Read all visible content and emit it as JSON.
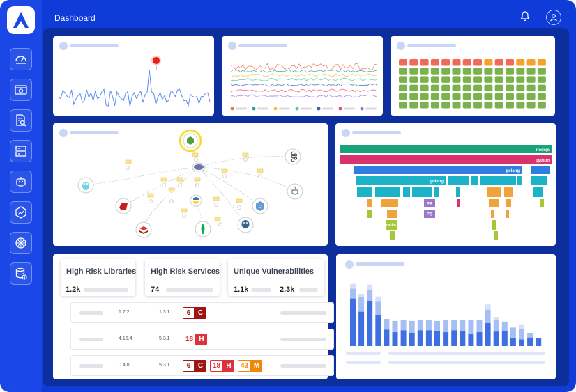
{
  "header": {
    "title": "Dashboard"
  },
  "colors": {
    "frame": "#0f3bd8",
    "main": "#0d2f9e",
    "critical": "#a01414",
    "high": "#e0303a",
    "medium": "#f0870a",
    "teal": "#18a37a",
    "pink": "#d8336d",
    "blue": "#2f7de0",
    "cyan": "#1cb3c8"
  },
  "sidebar": {
    "icons": [
      "speedometer-icon",
      "browser-icon",
      "document-search-icon",
      "server-icon",
      "robot-icon",
      "hexagon-chart-icon",
      "kubernetes-icon",
      "database-download-icon"
    ]
  },
  "dependency_graph": {
    "icons": [
      "nodejs-icon",
      "go-icon",
      "kafka-icon",
      "ruby-icon",
      "java-icon",
      "python-icon",
      "cplusplus-icon",
      "redis-icon",
      "mongodb-icon",
      "postgresql-icon"
    ]
  },
  "line_legend_colors": [
    "#f0734e",
    "#2f9fa8",
    "#f3c13a",
    "#55c7a0",
    "#3a5fa8",
    "#e94e7a",
    "#a26ee6"
  ],
  "flame": {
    "labels": [
      "nodejs",
      "python",
      "golang",
      "golang",
      "PB",
      "PB",
      "redis"
    ]
  },
  "stats": {
    "high_risk_libraries": {
      "label": "High Risk Libraries",
      "value": "1.2k"
    },
    "high_risk_services": {
      "label": "High Risk Services",
      "value": "74"
    },
    "unique_vulnerabilities": {
      "label": "Unique Vulnerabilities",
      "value1": "1.1k",
      "value2": "2.3k"
    }
  },
  "rows": [
    {
      "v1": "1.7.2",
      "v2": "1.3.1",
      "c": "6"
    },
    {
      "v1": "4.16.4",
      "v2": "5.3.1",
      "h": "18"
    },
    {
      "v1": "0.4.0",
      "v2": "5.3.1",
      "c": "6",
      "h": "18",
      "m": "43"
    }
  ],
  "severity_letters": {
    "critical": "C",
    "high": "H",
    "medium": "M"
  },
  "chart_data": {
    "type": "bar",
    "series": [
      {
        "values": [
          72,
          52,
          68,
          47,
          25,
          21,
          24,
          20,
          24,
          24,
          23,
          21,
          24,
          23,
          19,
          21,
          35,
          22,
          23,
          12,
          10,
          13,
          12
        ]
      },
      {
        "values": [
          15,
          22,
          17,
          20,
          16,
          17,
          16,
          18,
          15,
          16,
          15,
          18,
          16,
          17,
          20,
          18,
          20,
          17,
          14,
          16,
          16,
          7,
          0
        ]
      },
      {
        "values": [
          7,
          5,
          8,
          8,
          0,
          0,
          0,
          0,
          0,
          0,
          0,
          0,
          0,
          0,
          0,
          0,
          8,
          5,
          0,
          0,
          6,
          0,
          0
        ]
      }
    ]
  }
}
